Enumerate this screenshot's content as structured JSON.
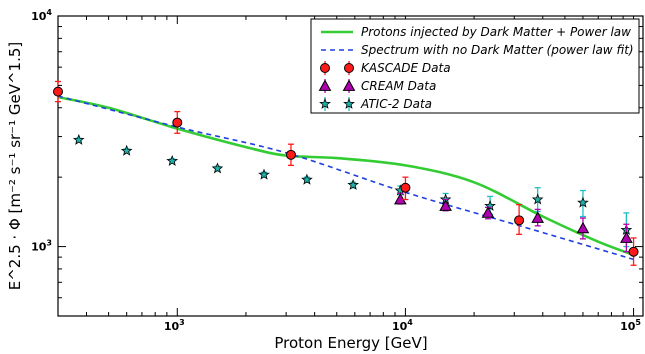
{
  "chart_data": {
    "type": "line",
    "xscale": "log",
    "yscale": "log",
    "xlim": [
      300,
      110000
    ],
    "ylim": [
      500,
      10000
    ],
    "xlabel": "Proton Energy [GeV]",
    "ylabel": "E^2.5 · Φ [m⁻² s⁻¹ sr⁻¹ GeV^1.5]",
    "xticks": [
      {
        "value": 1000,
        "base": "10",
        "exp": "3"
      },
      {
        "value": 10000,
        "base": "10",
        "exp": "4"
      },
      {
        "value": 100000,
        "base": "10",
        "exp": "5"
      }
    ],
    "yticks": [
      {
        "value": 1000,
        "base": "10",
        "exp": "3"
      },
      {
        "value": 10000,
        "base": "10",
        "exp": "4"
      }
    ],
    "legend_position": "top-right",
    "series": [
      {
        "name": "Protons injected by Dark Matter + Power law",
        "kind": "line",
        "color": "#33cc33",
        "dash": "solid",
        "x": [
          300,
          500,
          1000,
          2000,
          3000,
          5000,
          10000,
          20000,
          40000,
          70000,
          100000
        ],
        "y": [
          4450,
          4000,
          3250,
          2700,
          2480,
          2420,
          2250,
          1900,
          1350,
          1050,
          920
        ]
      },
      {
        "name": "Spectrum with no Dark Matter (power law fit)",
        "kind": "line",
        "color": "#1f3fe0",
        "dash": "dashed",
        "x": [
          300,
          1000,
          3000,
          10000,
          30000,
          100000
        ],
        "y": [
          4500,
          3300,
          2550,
          1720,
          1250,
          880
        ]
      },
      {
        "name": "KASCADE Data",
        "kind": "errorbar",
        "marker": "circle",
        "color": "#ff1a1a",
        "errcolor": "#ff1a1a",
        "points": [
          {
            "x": 300,
            "y": 4700,
            "lo": 4250,
            "hi": 5200
          },
          {
            "x": 1000,
            "y": 3450,
            "lo": 3100,
            "hi": 3850
          },
          {
            "x": 3150,
            "y": 2500,
            "lo": 2250,
            "hi": 2780
          },
          {
            "x": 10000,
            "y": 1800,
            "lo": 1600,
            "hi": 2000
          },
          {
            "x": 31500,
            "y": 1300,
            "lo": 1130,
            "hi": 1520
          },
          {
            "x": 100000,
            "y": 950,
            "lo": 830,
            "hi": 1090
          }
        ]
      },
      {
        "name": "CREAM Data",
        "kind": "errorbar",
        "marker": "triangle",
        "color": "#b000b0",
        "errcolor": "#b000b0",
        "points": [
          {
            "x": 9500,
            "y": 1600,
            "lo": 1530,
            "hi": 1700
          },
          {
            "x": 15000,
            "y": 1500,
            "lo": 1430,
            "hi": 1600
          },
          {
            "x": 23000,
            "y": 1400,
            "lo": 1320,
            "hi": 1480
          },
          {
            "x": 38000,
            "y": 1330,
            "lo": 1230,
            "hi": 1450
          },
          {
            "x": 60000,
            "y": 1200,
            "lo": 1080,
            "hi": 1330
          },
          {
            "x": 93000,
            "y": 1090,
            "lo": 950,
            "hi": 1250
          }
        ]
      },
      {
        "name": "ATIC-2 Data",
        "kind": "errorbar",
        "marker": "star",
        "color": "#20b2aa",
        "errcolor": "#20c0c0",
        "points": [
          {
            "x": 370,
            "y": 2900,
            "lo": 2850,
            "hi": 2950
          },
          {
            "x": 600,
            "y": 2600,
            "lo": 2550,
            "hi": 2650
          },
          {
            "x": 950,
            "y": 2350,
            "lo": 2300,
            "hi": 2400
          },
          {
            "x": 1500,
            "y": 2180,
            "lo": 2130,
            "hi": 2230
          },
          {
            "x": 2400,
            "y": 2050,
            "lo": 2000,
            "hi": 2100
          },
          {
            "x": 3700,
            "y": 1950,
            "lo": 1900,
            "hi": 2000
          },
          {
            "x": 5900,
            "y": 1850,
            "lo": 1800,
            "hi": 1900
          },
          {
            "x": 9500,
            "y": 1750,
            "lo": 1680,
            "hi": 1830
          },
          {
            "x": 15000,
            "y": 1600,
            "lo": 1520,
            "hi": 1700
          },
          {
            "x": 23500,
            "y": 1500,
            "lo": 1380,
            "hi": 1650
          },
          {
            "x": 38000,
            "y": 1600,
            "lo": 1420,
            "hi": 1800
          },
          {
            "x": 60000,
            "y": 1550,
            "lo": 1350,
            "hi": 1750
          },
          {
            "x": 93000,
            "y": 1180,
            "lo": 1000,
            "hi": 1400
          }
        ]
      }
    ]
  }
}
